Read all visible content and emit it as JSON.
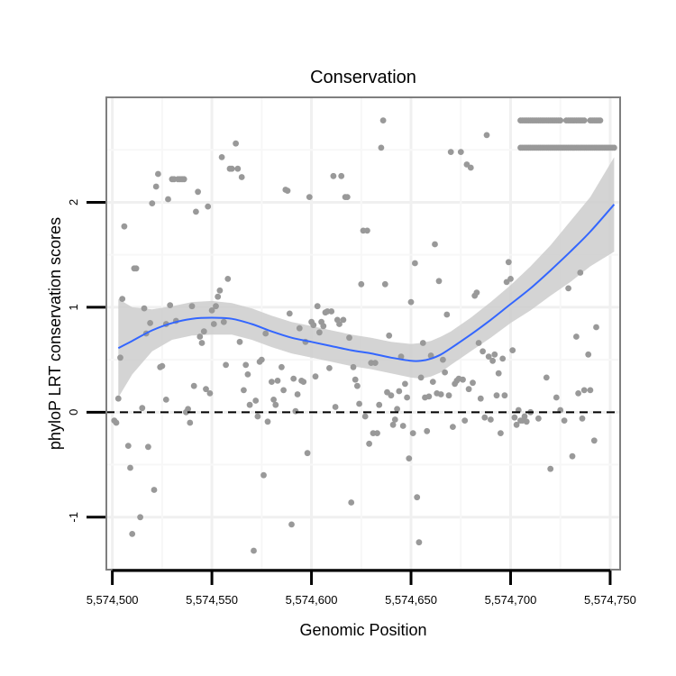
{
  "chart_data": {
    "type": "scatter",
    "title": "Conservation",
    "xlabel": "Genomic Position",
    "ylabel": "phyloP LRT conservation scores",
    "xlim": [
      5574497,
      5574755
    ],
    "ylim": [
      -1.5,
      3.0
    ],
    "x_ticks": [
      5574500,
      5574550,
      5574600,
      5574650,
      5574700,
      5574750
    ],
    "x_tick_labels": [
      "5,574,500",
      "5,574,550",
      "5,574,600",
      "5,574,650",
      "5,574,700",
      "5,574,750"
    ],
    "y_ticks": [
      -1,
      0,
      1,
      2
    ],
    "y_tick_labels": [
      "-1",
      "0",
      "1",
      "2"
    ],
    "reference_line": {
      "y": 0,
      "style": "dashed",
      "color": "#000000"
    },
    "point_color": "#999999",
    "points": [
      [
        5574501,
        -0.08
      ],
      [
        5574502,
        -0.1
      ],
      [
        5574503,
        0.13
      ],
      [
        5574504,
        0.52
      ],
      [
        5574505,
        1.08
      ],
      [
        5574506,
        1.77
      ],
      [
        5574508,
        -0.32
      ],
      [
        5574509,
        -0.53
      ],
      [
        5574510,
        -1.16
      ],
      [
        5574511,
        1.37
      ],
      [
        5574512,
        1.37
      ],
      [
        5574514,
        -1.0
      ],
      [
        5574515,
        0.04
      ],
      [
        5574516,
        0.99
      ],
      [
        5574517,
        0.75
      ],
      [
        5574518,
        -0.33
      ],
      [
        5574519,
        0.85
      ],
      [
        5574520,
        1.99
      ],
      [
        5574521,
        -0.74
      ],
      [
        5574522,
        2.15
      ],
      [
        5574523,
        2.27
      ],
      [
        5574524,
        0.43
      ],
      [
        5574525,
        0.44
      ],
      [
        5574527,
        0.12
      ],
      [
        5574527,
        0.84
      ],
      [
        5574528,
        2.03
      ],
      [
        5574529,
        1.02
      ],
      [
        5574530,
        2.22
      ],
      [
        5574531,
        2.22
      ],
      [
        5574532,
        0.87
      ],
      [
        5574533,
        2.22
      ],
      [
        5574534,
        2.22
      ],
      [
        5574535,
        2.22
      ],
      [
        5574536,
        2.22
      ],
      [
        5574537,
        0.0
      ],
      [
        5574538,
        0.03
      ],
      [
        5574539,
        -0.1
      ],
      [
        5574540,
        1.01
      ],
      [
        5574541,
        0.25
      ],
      [
        5574542,
        1.91
      ],
      [
        5574543,
        2.1
      ],
      [
        5574544,
        0.72
      ],
      [
        5574545,
        0.66
      ],
      [
        5574546,
        0.77
      ],
      [
        5574547,
        0.22
      ],
      [
        5574548,
        1.96
      ],
      [
        5574549,
        0.18
      ],
      [
        5574550,
        0.97
      ],
      [
        5574551,
        0.84
      ],
      [
        5574552,
        1.01
      ],
      [
        5574553,
        1.1
      ],
      [
        5574554,
        1.16
      ],
      [
        5574555,
        2.43
      ],
      [
        5574556,
        0.86
      ],
      [
        5574557,
        0.45
      ],
      [
        5574558,
        1.27
      ],
      [
        5574559,
        2.32
      ],
      [
        5574560,
        2.32
      ],
      [
        5574562,
        2.56
      ],
      [
        5574563,
        2.32
      ],
      [
        5574564,
        0.67
      ],
      [
        5574565,
        2.24
      ],
      [
        5574566,
        0.21
      ],
      [
        5574567,
        0.45
      ],
      [
        5574568,
        0.36
      ],
      [
        5574569,
        0.07
      ],
      [
        5574571,
        -1.32
      ],
      [
        5574572,
        0.11
      ],
      [
        5574573,
        -0.04
      ],
      [
        5574574,
        0.48
      ],
      [
        5574575,
        0.5
      ],
      [
        5574576,
        -0.6
      ],
      [
        5574577,
        0.75
      ],
      [
        5574578,
        -0.09
      ],
      [
        5574580,
        0.29
      ],
      [
        5574581,
        0.12
      ],
      [
        5574582,
        0.07
      ],
      [
        5574583,
        0.3
      ],
      [
        5574585,
        0.43
      ],
      [
        5574586,
        0.21
      ],
      [
        5574587,
        2.12
      ],
      [
        5574588,
        2.11
      ],
      [
        5574589,
        0.94
      ],
      [
        5574590,
        -1.07
      ],
      [
        5574591,
        0.32
      ],
      [
        5574592,
        0.01
      ],
      [
        5574593,
        0.17
      ],
      [
        5574594,
        0.8
      ],
      [
        5574595,
        0.3
      ],
      [
        5574596,
        0.29
      ],
      [
        5574597,
        0.67
      ],
      [
        5574598,
        -0.39
      ],
      [
        5574599,
        2.05
      ],
      [
        5574600,
        0.86
      ],
      [
        5574601,
        0.83
      ],
      [
        5574602,
        0.34
      ],
      [
        5574603,
        1.01
      ],
      [
        5574604,
        0.76
      ],
      [
        5574605,
        0.86
      ],
      [
        5574606,
        0.82
      ],
      [
        5574607,
        0.95
      ],
      [
        5574608,
        0.96
      ],
      [
        5574609,
        0.42
      ],
      [
        5574610,
        0.96
      ],
      [
        5574611,
        2.25
      ],
      [
        5574612,
        0.05
      ],
      [
        5574613,
        0.88
      ],
      [
        5574614,
        0.84
      ],
      [
        5574615,
        2.25
      ],
      [
        5574616,
        0.88
      ],
      [
        5574617,
        2.05
      ],
      [
        5574618,
        2.05
      ],
      [
        5574619,
        0.71
      ],
      [
        5574620,
        -0.86
      ],
      [
        5574621,
        0.43
      ],
      [
        5574622,
        0.31
      ],
      [
        5574623,
        0.25
      ],
      [
        5574624,
        0.08
      ],
      [
        5574625,
        1.22
      ],
      [
        5574626,
        1.73
      ],
      [
        5574627,
        -0.04
      ],
      [
        5574628,
        1.73
      ],
      [
        5574629,
        -0.3
      ],
      [
        5574630,
        0.47
      ],
      [
        5574631,
        -0.2
      ],
      [
        5574632,
        0.47
      ],
      [
        5574633,
        -0.2
      ],
      [
        5574634,
        0.07
      ],
      [
        5574635,
        2.52
      ],
      [
        5574636,
        2.78
      ],
      [
        5574637,
        1.22
      ],
      [
        5574638,
        0.19
      ],
      [
        5574639,
        0.73
      ],
      [
        5574640,
        0.16
      ],
      [
        5574641,
        -0.12
      ],
      [
        5574642,
        -0.07
      ],
      [
        5574643,
        0.03
      ],
      [
        5574644,
        0.2
      ],
      [
        5574645,
        0.53
      ],
      [
        5574646,
        -0.13
      ],
      [
        5574647,
        0.27
      ],
      [
        5574648,
        0.14
      ],
      [
        5574649,
        -0.44
      ],
      [
        5574650,
        1.05
      ],
      [
        5574651,
        -0.2
      ],
      [
        5574652,
        1.42
      ],
      [
        5574653,
        -0.81
      ],
      [
        5574654,
        -1.24
      ],
      [
        5574655,
        0.33
      ],
      [
        5574656,
        0.66
      ],
      [
        5574657,
        0.14
      ],
      [
        5574658,
        -0.18
      ],
      [
        5574659,
        0.15
      ],
      [
        5574660,
        0.54
      ],
      [
        5574661,
        0.29
      ],
      [
        5574662,
        1.6
      ],
      [
        5574663,
        0.18
      ],
      [
        5574664,
        1.25
      ],
      [
        5574665,
        0.17
      ],
      [
        5574666,
        0.5
      ],
      [
        5574667,
        0.38
      ],
      [
        5574668,
        0.93
      ],
      [
        5574669,
        0.16
      ],
      [
        5574670,
        2.48
      ],
      [
        5574671,
        -0.14
      ],
      [
        5574672,
        0.27
      ],
      [
        5574673,
        0.3
      ],
      [
        5574674,
        0.32
      ],
      [
        5574675,
        2.48
      ],
      [
        5574676,
        0.31
      ],
      [
        5574677,
        -0.08
      ],
      [
        5574678,
        2.36
      ],
      [
        5574679,
        0.22
      ],
      [
        5574680,
        2.33
      ],
      [
        5574681,
        0.28
      ],
      [
        5574682,
        1.11
      ],
      [
        5574683,
        1.14
      ],
      [
        5574684,
        0.66
      ],
      [
        5574685,
        0.13
      ],
      [
        5574686,
        0.58
      ],
      [
        5574687,
        -0.05
      ],
      [
        5574688,
        2.64
      ],
      [
        5574689,
        0.53
      ],
      [
        5574690,
        -0.07
      ],
      [
        5574691,
        0.49
      ],
      [
        5574692,
        0.55
      ],
      [
        5574693,
        0.16
      ],
      [
        5574694,
        0.37
      ],
      [
        5574695,
        -0.2
      ],
      [
        5574696,
        0.51
      ],
      [
        5574697,
        0.16
      ],
      [
        5574698,
        1.24
      ],
      [
        5574699,
        1.43
      ],
      [
        5574700,
        1.27
      ],
      [
        5574701,
        0.59
      ],
      [
        5574702,
        -0.05
      ],
      [
        5574703,
        -0.12
      ],
      [
        5574704,
        0.02
      ],
      [
        5574705,
        -0.08
      ],
      [
        5574706,
        -0.08
      ],
      [
        5574707,
        -0.04
      ],
      [
        5574708,
        -0.09
      ],
      [
        5574710,
        0.0
      ],
      [
        5574714,
        -0.06
      ],
      [
        5574718,
        0.33
      ],
      [
        5574720,
        -0.54
      ],
      [
        5574723,
        0.14
      ],
      [
        5574725,
        0.02
      ],
      [
        5574727,
        -0.08
      ],
      [
        5574729,
        1.18
      ],
      [
        5574731,
        -0.42
      ],
      [
        5574733,
        0.72
      ],
      [
        5574734,
        0.18
      ],
      [
        5574735,
        1.33
      ],
      [
        5574736,
        -0.06
      ],
      [
        5574737,
        0.21
      ],
      [
        5574739,
        0.55
      ],
      [
        5574740,
        0.21
      ],
      [
        5574742,
        -0.27
      ],
      [
        5574743,
        0.81
      ]
    ],
    "repeated_points": [
      {
        "x_start": 5574705,
        "x_end": 5574725,
        "y": 2.78
      },
      {
        "x_start": 5574728,
        "x_end": 5574737,
        "y": 2.78
      },
      {
        "x_start": 5574740,
        "x_end": 5574745,
        "y": 2.78
      },
      {
        "x_start": 5574705,
        "x_end": 5574752,
        "y": 2.52
      }
    ],
    "smooth": {
      "method": "loess",
      "color": "#3366FF",
      "ribbon_color": "#CCCCCC",
      "x": [
        5574503,
        5574510,
        5574520,
        5574530,
        5574540,
        5574550,
        5574560,
        5574570,
        5574580,
        5574590,
        5574600,
        5574610,
        5574620,
        5574630,
        5574640,
        5574650,
        5574655,
        5574660,
        5574665,
        5574670,
        5574680,
        5574690,
        5574700,
        5574710,
        5574720,
        5574730,
        5574740,
        5574752
      ],
      "y": [
        0.61,
        0.68,
        0.78,
        0.85,
        0.89,
        0.9,
        0.89,
        0.84,
        0.77,
        0.71,
        0.67,
        0.63,
        0.59,
        0.56,
        0.52,
        0.49,
        0.49,
        0.51,
        0.55,
        0.61,
        0.74,
        0.88,
        1.03,
        1.18,
        1.35,
        1.53,
        1.72,
        1.98
      ],
      "lower": [
        0.14,
        0.36,
        0.58,
        0.69,
        0.73,
        0.74,
        0.74,
        0.69,
        0.62,
        0.56,
        0.52,
        0.48,
        0.44,
        0.41,
        0.37,
        0.33,
        0.32,
        0.34,
        0.38,
        0.45,
        0.58,
        0.71,
        0.85,
        0.97,
        1.11,
        1.24,
        1.39,
        1.53
      ],
      "upper": [
        1.08,
        1.0,
        0.98,
        1.01,
        1.05,
        1.06,
        1.04,
        0.99,
        0.92,
        0.86,
        0.82,
        0.78,
        0.74,
        0.71,
        0.67,
        0.65,
        0.66,
        0.68,
        0.72,
        0.77,
        0.9,
        1.05,
        1.21,
        1.39,
        1.59,
        1.82,
        2.05,
        2.43
      ]
    }
  }
}
